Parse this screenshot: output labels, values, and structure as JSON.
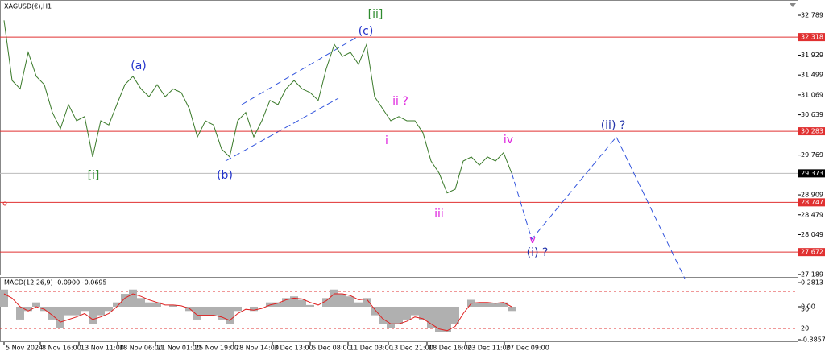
{
  "chart_data": {
    "type": "line",
    "title": "XAGUSD(€),H1",
    "xlim": [
      -0.5,
      98.5
    ],
    "ylim": [
      27.17,
      33.12
    ],
    "xticks": [
      {
        "value": 0,
        "label": "5 Nov 2024"
      },
      {
        "value": 4.5,
        "label": "8 Nov 16:00"
      },
      {
        "value": 9.3,
        "label": "13 Nov 11:00"
      },
      {
        "value": 14.1,
        "label": "18 Nov 06:00"
      },
      {
        "value": 18.8,
        "label": "21 Nov 01:00"
      },
      {
        "value": 23.5,
        "label": "25 Nov 19:00"
      },
      {
        "value": 28.5,
        "label": "28 Nov 14:00"
      },
      {
        "value": 33.3,
        "label": "3 Dec 13:00"
      },
      {
        "value": 38,
        "label": "6 Dec 08:00"
      },
      {
        "value": 42.7,
        "label": "11 Dec 03:00"
      },
      {
        "value": 47.7,
        "label": "13 Dec 21:00"
      },
      {
        "value": 52.5,
        "label": "18 Dec 16:00"
      },
      {
        "value": 57.3,
        "label": "23 Dec 11:00"
      },
      {
        "value": 62.1,
        "label": "27 Dec 09:00"
      }
    ],
    "yticks": [
      32.789,
      31.929,
      31.499,
      31.069,
      30.639,
      29.769,
      28.909,
      28.479,
      28.049,
      27.189
    ],
    "levels": [
      {
        "value": 32.318,
        "color": "#e03030"
      },
      {
        "value": 30.283,
        "color": "#e03030"
      },
      {
        "value": 29.373,
        "color": "#000000"
      },
      {
        "value": 28.747,
        "color": "#e03030"
      },
      {
        "value": 27.672,
        "color": "#e03030"
      }
    ],
    "series": [
      {
        "name": "price",
        "color": "#3a7a2a",
        "x": [
          0,
          1,
          2,
          3,
          4,
          5,
          6,
          7,
          8,
          9,
          10,
          11,
          12,
          13,
          14,
          15,
          16,
          17,
          18,
          19,
          20,
          21,
          22,
          23,
          24,
          25,
          26,
          27,
          28,
          29,
          30,
          31,
          32,
          33,
          34,
          35,
          36,
          37,
          38,
          39,
          40,
          41,
          42,
          43,
          44,
          45,
          46,
          47,
          48,
          49,
          50,
          51,
          52,
          53,
          54,
          55,
          56,
          57,
          58,
          59,
          60,
          61,
          62,
          63
        ],
        "values": [
          32.68,
          31.38,
          31.2,
          31.99,
          31.47,
          31.29,
          30.69,
          30.34,
          30.86,
          30.51,
          30.6,
          29.73,
          30.51,
          30.42,
          30.86,
          31.29,
          31.47,
          31.2,
          31.03,
          31.29,
          31.03,
          31.2,
          31.12,
          30.77,
          30.16,
          30.51,
          30.42,
          29.9,
          29.73,
          30.51,
          30.69,
          30.16,
          30.51,
          30.95,
          30.86,
          31.2,
          31.38,
          31.2,
          31.12,
          30.95,
          31.64,
          32.16,
          31.9,
          31.99,
          31.73,
          32.16,
          31.03,
          30.77,
          30.51,
          30.6,
          30.51,
          30.51,
          30.25,
          29.64,
          29.38,
          28.95,
          29.03,
          29.64,
          29.73,
          29.55,
          29.73,
          29.64,
          29.82,
          29.38
        ]
      },
      {
        "name": "projection",
        "color": "#3355dd",
        "x": [
          63,
          65.5,
          76,
          84.5
        ],
        "values": [
          29.39,
          27.95,
          30.16,
          27.1
        ]
      }
    ],
    "annotations": [
      {
        "text": "[ii]",
        "color": "#2e8b2e"
      },
      {
        "text": "(c)",
        "color": "#2233cc"
      },
      {
        "text": "(a)",
        "color": "#2233cc"
      },
      {
        "text": "(b)",
        "color": "#2233cc"
      },
      {
        "text": "[i]",
        "color": "#2e8b2e"
      },
      {
        "text": "ii ?",
        "color": "#dd22dd"
      },
      {
        "text": "i",
        "color": "#dd22dd"
      },
      {
        "text": "iv",
        "color": "#dd22dd"
      },
      {
        "text": "iii",
        "color": "#dd22dd"
      },
      {
        "text": "v",
        "color": "#dd22dd"
      },
      {
        "text": "(i) ?",
        "color": "#2233aa"
      },
      {
        "text": "(ii) ?",
        "color": "#2233aa"
      }
    ],
    "macd": {
      "title": "MACD(12,26,9) -0.0900 -0.0695",
      "ylim": [
        -0.414,
        0.348
      ],
      "yticks": [
        0.2813,
        {
          "value": 0,
          "label": "0.00"
        },
        -0.3857
      ],
      "extra_labels": [
        "50",
        "20"
      ],
      "histogram": {
        "color": "#b0b0b0",
        "values": [
          0.2,
          0.0,
          -0.15,
          -0.05,
          0.05,
          -0.05,
          -0.15,
          -0.25,
          -0.1,
          -0.1,
          -0.05,
          -0.2,
          -0.1,
          -0.05,
          0.05,
          0.15,
          0.2,
          0.1,
          0.05,
          0.05,
          0.0,
          0.02,
          0.0,
          -0.05,
          -0.15,
          -0.1,
          -0.1,
          -0.15,
          -0.2,
          -0.05,
          0.0,
          -0.05,
          0.0,
          0.05,
          0.05,
          0.1,
          0.12,
          0.08,
          0.02,
          0.0,
          0.1,
          0.2,
          0.15,
          0.12,
          0.05,
          0.1,
          -0.1,
          -0.2,
          -0.25,
          -0.2,
          -0.15,
          -0.1,
          -0.15,
          -0.25,
          -0.3,
          -0.3,
          -0.2,
          0.0,
          0.08,
          0.05,
          0.05,
          0.04,
          0.05,
          -0.05
        ]
      },
      "signal": {
        "color": "#e02020",
        "values": [
          0.15,
          0.1,
          0.0,
          -0.05,
          0.0,
          -0.03,
          -0.1,
          -0.18,
          -0.15,
          -0.12,
          -0.08,
          -0.15,
          -0.12,
          -0.08,
          0.0,
          0.1,
          0.15,
          0.12,
          0.08,
          0.05,
          0.02,
          0.02,
          0.01,
          -0.02,
          -0.1,
          -0.1,
          -0.1,
          -0.12,
          -0.16,
          -0.08,
          -0.03,
          -0.04,
          -0.02,
          0.02,
          0.04,
          0.08,
          0.1,
          0.09,
          0.05,
          0.02,
          0.07,
          0.15,
          0.15,
          0.13,
          0.08,
          0.09,
          -0.03,
          -0.14,
          -0.2,
          -0.2,
          -0.17,
          -0.12,
          -0.14,
          -0.2,
          -0.26,
          -0.28,
          -0.23,
          -0.08,
          0.04,
          0.05,
          0.05,
          0.04,
          0.05,
          0.0
        ]
      }
    }
  }
}
